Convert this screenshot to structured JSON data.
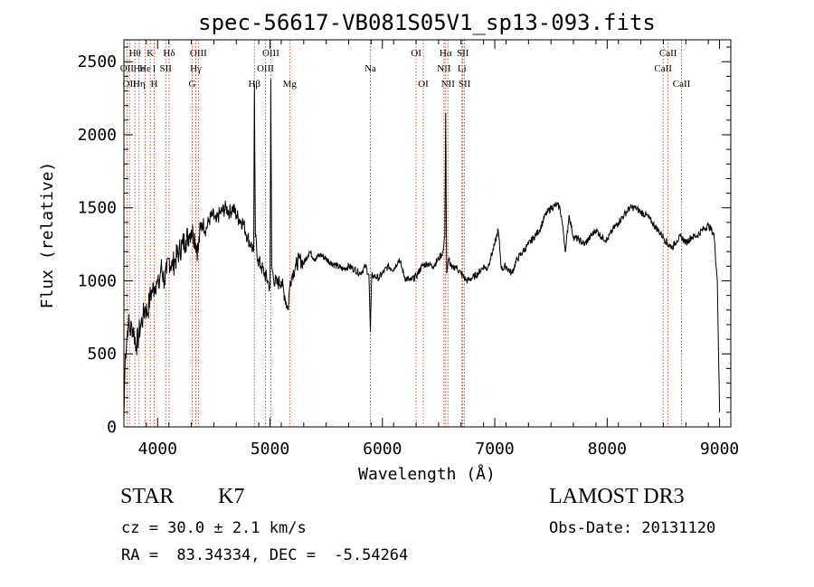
{
  "chart_data": {
    "type": "line",
    "title": "spec-56617-VB081S05V1_sp13-093.fits",
    "xlabel": "Wavelength (Å)",
    "ylabel": "Flux (relative)",
    "xlim": [
      3700,
      9100
    ],
    "ylim": [
      0,
      2650
    ],
    "x_ticks": [
      4000,
      5000,
      6000,
      7000,
      8000,
      9000
    ],
    "y_ticks": [
      0,
      500,
      1000,
      1500,
      2000,
      2500
    ],
    "grid": false,
    "line_color": "#000000",
    "marker_color": "#cc2200",
    "series": [
      {
        "x": [
          3700,
          3712,
          3725,
          3740,
          3755,
          3770,
          3790,
          3810,
          3830,
          3850,
          3870,
          3890,
          3910,
          3930,
          3950,
          3970,
          3990,
          4010,
          4030,
          4060,
          4080,
          4100,
          4130,
          4160,
          4190,
          4220,
          4250,
          4280,
          4300,
          4330,
          4360,
          4380,
          4400,
          4430,
          4460,
          4490,
          4520,
          4550,
          4580,
          4610,
          4640,
          4670,
          4700,
          4730,
          4760,
          4800,
          4830,
          4855,
          4861,
          4870,
          4890,
          4920,
          4950,
          4980,
          5000,
          5007,
          5015,
          5030,
          5060,
          5100,
          5130,
          5160,
          5180,
          5200,
          5230,
          5260,
          5300,
          5350,
          5400,
          5450,
          5500,
          5550,
          5600,
          5650,
          5700,
          5750,
          5800,
          5850,
          5880,
          5893,
          5905,
          5930,
          5970,
          6000,
          6050,
          6100,
          6150,
          6200,
          6250,
          6300,
          6350,
          6400,
          6450,
          6500,
          6540,
          6555,
          6563,
          6572,
          6590,
          6620,
          6650,
          6700,
          6750,
          6800,
          6850,
          6900,
          6930,
          6960,
          7000,
          7030,
          7060,
          7100,
          7150,
          7200,
          7250,
          7300,
          7350,
          7400,
          7450,
          7500,
          7550,
          7580,
          7600,
          7630,
          7660,
          7700,
          7750,
          7800,
          7850,
          7900,
          7950,
          8000,
          8050,
          8100,
          8150,
          8200,
          8250,
          8300,
          8350,
          8400,
          8450,
          8500,
          8542,
          8580,
          8620,
          8662,
          8700,
          8750,
          8800,
          8850,
          8900,
          8950,
          8980,
          9000
        ],
        "y": [
          60,
          500,
          600,
          720,
          650,
          700,
          640,
          560,
          620,
          700,
          750,
          820,
          780,
          880,
          930,
          960,
          1000,
          950,
          1100,
          1000,
          1050,
          1150,
          1100,
          1150,
          1200,
          1250,
          1280,
          1320,
          1350,
          1300,
          1200,
          1350,
          1400,
          1350,
          1420,
          1450,
          1400,
          1460,
          1480,
          1500,
          1470,
          1500,
          1450,
          1420,
          1400,
          1300,
          1250,
          1200,
          2350,
          1300,
          1150,
          1100,
          1050,
          1000,
          950,
          2380,
          1100,
          1020,
          980,
          1000,
          900,
          800,
          1000,
          1050,
          1100,
          1150,
          1120,
          1200,
          1150,
          1180,
          1150,
          1120,
          1100,
          1080,
          1100,
          1080,
          1050,
          1100,
          1040,
          650,
          1040,
          1030,
          1020,
          1050,
          1100,
          1080,
          1150,
          1020,
          1000,
          1030,
          1100,
          1120,
          1100,
          1150,
          1200,
          1300,
          2150,
          1050,
          1150,
          1080,
          1100,
          1050,
          1000,
          1020,
          1050,
          1100,
          1080,
          1150,
          1250,
          1350,
          1080,
          1100,
          1050,
          1150,
          1200,
          1250,
          1300,
          1350,
          1450,
          1500,
          1520,
          1500,
          1400,
          1200,
          1450,
          1300,
          1280,
          1250,
          1300,
          1350,
          1300,
          1280,
          1350,
          1400,
          1450,
          1500,
          1500,
          1470,
          1450,
          1400,
          1350,
          1300,
          1250,
          1230,
          1280,
          1300,
          1260,
          1300,
          1310,
          1350,
          1380,
          1320,
          1000,
          100
        ]
      }
    ],
    "line_markers": [
      {
        "x": 3727,
        "labels": [
          "OII"
        ],
        "row": [
          2
        ]
      },
      {
        "x": 3750,
        "labels": [
          "OII"
        ],
        "row": [
          3
        ]
      },
      {
        "x": 3798,
        "labels": [
          "Hθ"
        ],
        "row": [
          1
        ]
      },
      {
        "x": 3835,
        "labels": [
          "He",
          "Hη"
        ],
        "row": [
          2,
          3
        ]
      },
      {
        "x": 3889,
        "labels": [
          "He"
        ],
        "row": [
          2
        ]
      },
      {
        "x": 3934,
        "labels": [
          "K"
        ],
        "row": [
          1
        ]
      },
      {
        "x": 3969,
        "labels": [
          "I",
          "H"
        ],
        "row": [
          2,
          3
        ]
      },
      {
        "x": 4072,
        "labels": [
          "SII"
        ],
        "row": [
          2
        ]
      },
      {
        "x": 4102,
        "labels": [
          "Hδ"
        ],
        "row": [
          1
        ]
      },
      {
        "x": 4307,
        "labels": [
          "G"
        ],
        "row": [
          3
        ]
      },
      {
        "x": 4340,
        "labels": [
          "Hγ"
        ],
        "row": [
          2
        ]
      },
      {
        "x": 4363,
        "labels": [
          "OIII"
        ],
        "row": [
          1
        ]
      },
      {
        "x": 4861,
        "labels": [
          "Hβ"
        ],
        "row": [
          3
        ]
      },
      {
        "x": 4959,
        "labels": [
          "OIII"
        ],
        "row": [
          2
        ]
      },
      {
        "x": 5007,
        "labels": [
          "OIII"
        ],
        "row": [
          1
        ]
      },
      {
        "x": 5175,
        "labels": [
          "Mg"
        ],
        "row": [
          3
        ]
      },
      {
        "x": 5893,
        "labels": [
          "Na"
        ],
        "row": [
          2
        ]
      },
      {
        "x": 6300,
        "labels": [
          "OI"
        ],
        "row": [
          1
        ]
      },
      {
        "x": 6364,
        "labels": [
          "OI"
        ],
        "row": [
          3
        ]
      },
      {
        "x": 6548,
        "labels": [
          "NII"
        ],
        "row": [
          2
        ]
      },
      {
        "x": 6563,
        "labels": [
          "Hα"
        ],
        "row": [
          1
        ]
      },
      {
        "x": 6583,
        "labels": [
          "NII"
        ],
        "row": [
          3
        ]
      },
      {
        "x": 6708,
        "labels": [
          "Li"
        ],
        "row": [
          2
        ]
      },
      {
        "x": 6716,
        "labels": [
          "SII"
        ],
        "row": [
          1
        ]
      },
      {
        "x": 6731,
        "labels": [
          "SII"
        ],
        "row": [
          3
        ]
      },
      {
        "x": 8498,
        "labels": [
          "CaII"
        ],
        "row": [
          2
        ]
      },
      {
        "x": 8542,
        "labels": [
          "CaII"
        ],
        "row": [
          1
        ]
      },
      {
        "x": 8662,
        "labels": [
          "CaII"
        ],
        "row": [
          3
        ]
      }
    ]
  },
  "info": {
    "class_label": "STAR",
    "subclass": "K7",
    "survey": "LAMOST DR3",
    "cz": "cz = 30.0 ± 2.1 km/s",
    "obs_date": "Obs-Date: 20131120",
    "coords": "RA =  83.34334, DEC =  -5.54264"
  }
}
